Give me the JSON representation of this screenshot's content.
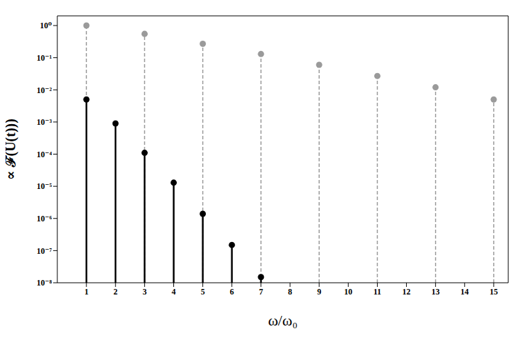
{
  "chart_data": {
    "type": "stem",
    "x_label": "ω/ω₀",
    "y_label": "∝ ℱ(U(t)))",
    "log": "y",
    "grid": false,
    "xlim": [
      0,
      15.5
    ],
    "xticks": [
      1,
      2,
      3,
      4,
      5,
      6,
      7,
      8,
      9,
      10,
      11,
      12,
      13,
      14,
      15
    ],
    "ylim": [
      1e-08,
      2
    ],
    "yticks": [
      {
        "value": 1,
        "label": "10⁰"
      },
      {
        "value": 0.1,
        "label": "10⁻¹"
      },
      {
        "value": 0.01,
        "label": "10⁻²"
      },
      {
        "value": 0.001,
        "label": "10⁻³"
      },
      {
        "value": 0.0001,
        "label": "10⁻⁴"
      },
      {
        "value": 1e-05,
        "label": "10⁻⁵"
      },
      {
        "value": 1e-06,
        "label": "10⁻⁶"
      },
      {
        "value": 1e-07,
        "label": "10⁻⁷"
      },
      {
        "value": 1e-08,
        "label": "10⁻⁸"
      }
    ],
    "series": [
      {
        "color": "#9a9a9a",
        "line_style": "dashed",
        "marker": "circle",
        "x": [
          1,
          3,
          5,
          7,
          9,
          11,
          13,
          15
        ],
        "values": [
          1.0,
          0.55,
          0.27,
          0.13,
          0.06,
          0.027,
          0.012,
          0.005
        ]
      },
      {
        "color": "#000000",
        "line_style": "solid",
        "marker": "circle",
        "x": [
          1,
          2,
          3,
          4,
          5,
          6,
          7
        ],
        "values": [
          0.005,
          0.0009,
          0.00011,
          1.3e-05,
          1.4e-06,
          1.5e-07,
          1.5e-08
        ]
      }
    ]
  }
}
